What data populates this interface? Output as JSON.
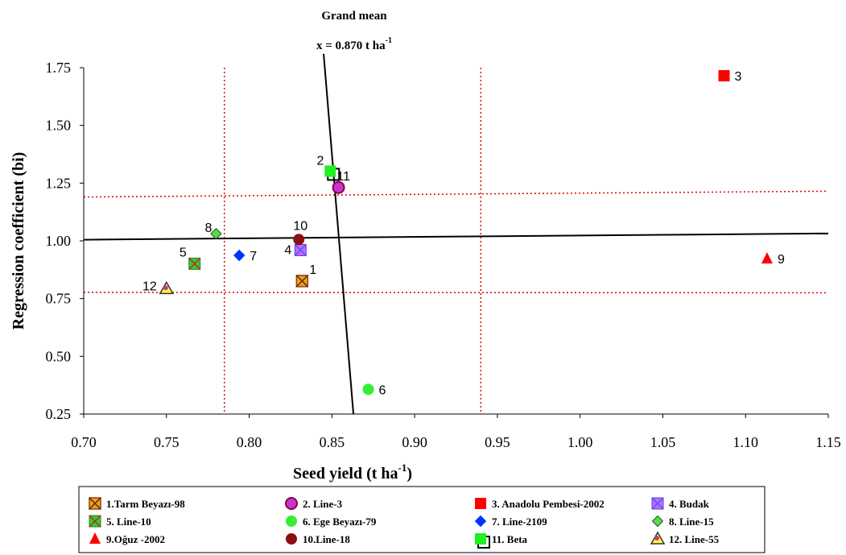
{
  "chart_data": {
    "type": "scatter",
    "annotation": {
      "line1": "Grand mean",
      "line2_prefix": "x = 0.870 t ha",
      "line2_sup": "-1"
    },
    "xlabel": {
      "text": "Seed yield (t ha",
      "sup": "-1",
      "suffix": ")"
    },
    "ylabel": "Regression coefficient (bi)",
    "xlim": [
      0.7,
      1.15
    ],
    "ylim": [
      0.25,
      1.75
    ],
    "x_ticks": [
      "0.70",
      "0.75",
      "0.80",
      "0.85",
      "0.90",
      "0.95",
      "1.00",
      "1.05",
      "1.10",
      "1.15"
    ],
    "y_ticks": [
      "0.25",
      "0.50",
      "0.75",
      "1.00",
      "1.25",
      "1.50",
      "1.75"
    ],
    "grand_mean_line": [
      [
        0.863,
        0.25
      ],
      [
        0.845,
        1.81
      ]
    ],
    "regression_line": [
      [
        0.7,
        1.005
      ],
      [
        1.15,
        1.032
      ]
    ],
    "dotted_vertical_x": [
      0.785,
      0.94
    ],
    "dotted_horizontal": [
      [
        [
          0.7,
          1.19
        ],
        [
          1.15,
          1.215
        ]
      ],
      [
        [
          0.7,
          0.777
        ],
        [
          1.15,
          0.775
        ]
      ]
    ],
    "points": [
      {
        "id": "1",
        "legend": "1.Tarm Beyazı-98",
        "x": 0.832,
        "y": 0.826,
        "marker": "square-x",
        "color": "#8B4513",
        "label_pos": "right"
      },
      {
        "id": "2",
        "legend": "2. Line-3",
        "x": 0.854,
        "y": 1.231,
        "marker": "circle-ring",
        "color": "#8B0045",
        "label_pos": "none"
      },
      {
        "id": "3",
        "legend": "3. Anadolu Pembesi-2002",
        "x": 1.087,
        "y": 1.715,
        "marker": "square",
        "color": "#FF0000",
        "label_pos": "right"
      },
      {
        "id": "4",
        "legend": "4. Budak",
        "x": 0.831,
        "y": 0.96,
        "marker": "square-x-blue",
        "color": "#CC66FF",
        "label_pos": "left"
      },
      {
        "id": "5",
        "legend": "5. Line-10",
        "x": 0.767,
        "y": 0.901,
        "marker": "square-x-green",
        "color": "#33CC33",
        "label_pos": "upleft"
      },
      {
        "id": "6",
        "legend": "6. Ege Beyazı-79",
        "x": 0.872,
        "y": 0.357,
        "marker": "circle",
        "color": "#33EE33",
        "label_pos": "right"
      },
      {
        "id": "7",
        "legend": "7. Line-2109",
        "x": 0.794,
        "y": 0.937,
        "marker": "diamond",
        "color": "#0033FF",
        "label_pos": "right"
      },
      {
        "id": "8",
        "legend": "8. Line-15",
        "x": 0.78,
        "y": 1.031,
        "marker": "diamond-green",
        "color": "#55DD44",
        "label_pos": "left"
      },
      {
        "id": "9",
        "legend": "9.Oğuz -2002",
        "x": 1.113,
        "y": 0.923,
        "marker": "triangle",
        "color": "#FF0000",
        "label_pos": "right"
      },
      {
        "id": "10",
        "legend": "10.Line-18",
        "x": 0.83,
        "y": 1.006,
        "marker": "circle-dark",
        "color": "#8B1010",
        "label_pos": "up"
      },
      {
        "id": "11",
        "legend": "11. Beta",
        "x": 0.849,
        "y": 1.302,
        "marker": "square-green",
        "color": "#22EE22",
        "label_pos": "none"
      },
      {
        "id": "12",
        "legend": "12. Line-55",
        "x": 0.75,
        "y": 0.793,
        "marker": "triangle-yellow",
        "color": "#FFFF33",
        "label_pos": "left"
      }
    ],
    "extra_labels": [
      {
        "text": "2",
        "x": 0.843,
        "y": 1.33
      },
      {
        "text": "11",
        "x": 0.857,
        "y": 1.262
      }
    ]
  }
}
